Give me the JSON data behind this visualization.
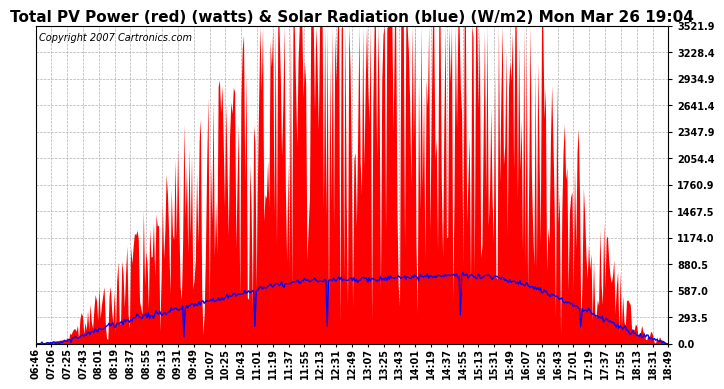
{
  "title": "Total PV Power (red) (watts) & Solar Radiation (blue) (W/m2) Mon Mar 26 19:04",
  "copyright": "Copyright 2007 Cartronics.com",
  "bg_color": "#ffffff",
  "plot_bg_color": "#ffffff",
  "grid_color": "#b0b0b0",
  "yticks": [
    0.0,
    293.5,
    587.0,
    880.5,
    1174.0,
    1467.5,
    1760.9,
    2054.4,
    2347.9,
    2641.4,
    2934.9,
    3228.4,
    3521.9
  ],
  "ylim": [
    0.0,
    3521.9
  ],
  "xtick_labels": [
    "06:46",
    "07:06",
    "07:25",
    "07:43",
    "08:01",
    "08:19",
    "08:37",
    "08:55",
    "09:13",
    "09:31",
    "09:49",
    "10:07",
    "10:25",
    "10:43",
    "11:01",
    "11:19",
    "11:37",
    "11:55",
    "12:13",
    "12:31",
    "12:49",
    "13:07",
    "13:25",
    "13:43",
    "14:01",
    "14:19",
    "14:37",
    "14:55",
    "15:13",
    "15:31",
    "15:49",
    "16:07",
    "16:25",
    "16:43",
    "17:01",
    "17:19",
    "17:37",
    "17:55",
    "18:13",
    "18:31",
    "18:49"
  ],
  "red_color": "#ff0000",
  "blue_color": "#0000ff",
  "title_fontsize": 11,
  "axis_fontsize": 7,
  "copyright_fontsize": 7,
  "pv_envelope_centers": [
    0.0,
    0.05,
    0.15,
    0.22,
    0.3,
    0.4,
    0.5,
    0.58,
    0.65,
    0.72,
    0.8,
    0.88,
    0.95,
    1.0
  ],
  "pv_envelope_values": [
    0,
    50,
    900,
    1500,
    2200,
    3000,
    3400,
    3400,
    3300,
    3100,
    2600,
    1200,
    200,
    0
  ],
  "solar_envelope_centers": [
    0.0,
    0.05,
    0.12,
    0.25,
    0.4,
    0.5,
    0.58,
    0.65,
    0.72,
    0.8,
    0.88,
    0.95,
    1.0
  ],
  "solar_envelope_values": [
    0,
    30,
    200,
    450,
    650,
    730,
    760,
    740,
    720,
    600,
    350,
    100,
    0
  ]
}
